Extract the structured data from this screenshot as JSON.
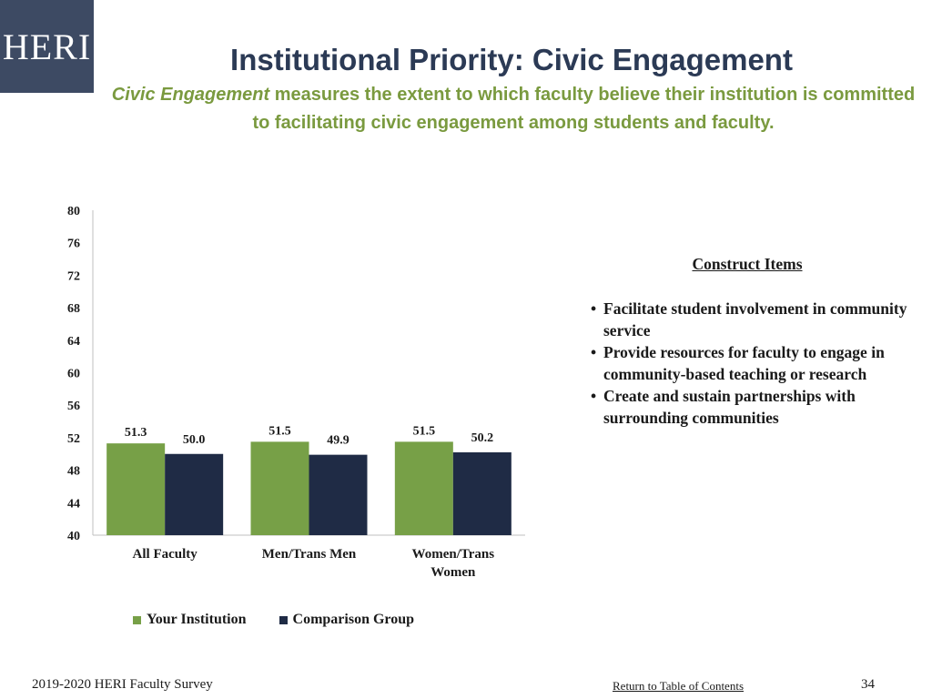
{
  "logo": {
    "text": "HERI"
  },
  "header": {
    "title": "Institutional Priority: Civic Engagement",
    "subtitle_emphasis": "Civic Engagement",
    "subtitle_rest": " measures the extent to which faculty believe their institution is committed to facilitating civic engagement among students and faculty."
  },
  "chart_data": {
    "type": "bar",
    "categories": [
      "All Faculty",
      "Men/Trans Men",
      "Women/Trans Women"
    ],
    "series": [
      {
        "name": "Your Institution",
        "color": "#77a047",
        "values": [
          51.3,
          51.5,
          51.5
        ]
      },
      {
        "name": "Comparison Group",
        "color": "#1f2b45",
        "values": [
          50.0,
          49.9,
          50.2
        ]
      }
    ],
    "ylim": [
      40,
      80
    ],
    "yticks": [
      40,
      44,
      48,
      52,
      56,
      60,
      64,
      68,
      72,
      76,
      80
    ],
    "data_labels": true,
    "grid": false,
    "legend_position": "bottom"
  },
  "construct": {
    "title": "Construct Items",
    "items": [
      "Facilitate student involvement in community service",
      "Provide resources for faculty to engage in community-based teaching or research",
      "Create and sustain partnerships with surrounding communities"
    ]
  },
  "footer": {
    "survey": "2019-2020 HERI Faculty Survey",
    "link": "Return to Table of Contents",
    "page": "34"
  }
}
